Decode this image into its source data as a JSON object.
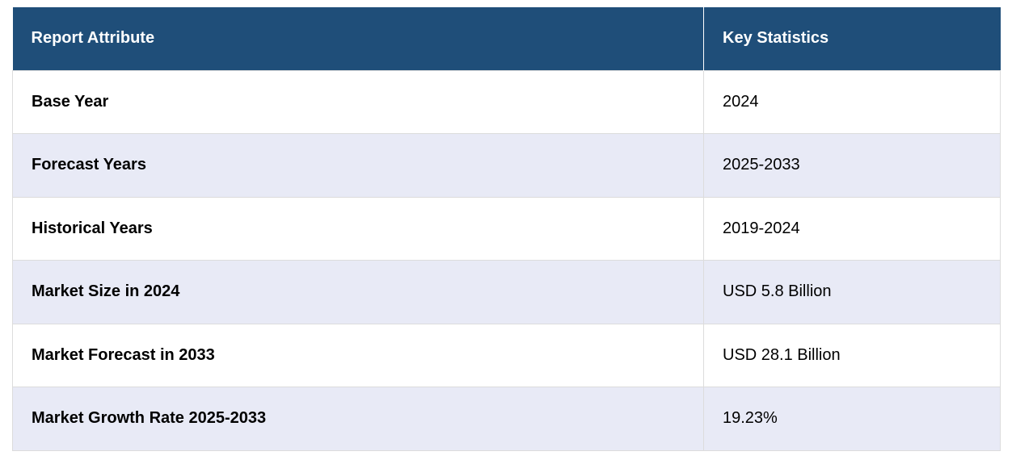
{
  "table": {
    "headers": [
      "Report Attribute",
      "Key Statistics"
    ],
    "rows": [
      {
        "attribute": "Base Year",
        "value": "2024"
      },
      {
        "attribute": "Forecast Years",
        "value": "2025-2033"
      },
      {
        "attribute": "Historical Years",
        "value": "2019-2024"
      },
      {
        "attribute": "Market Size in 2024",
        "value": "USD 5.8 Billion"
      },
      {
        "attribute": "Market Forecast in 2033",
        "value": "USD 28.1 Billion"
      },
      {
        "attribute": "Market Growth Rate 2025-2033",
        "value": "19.23%"
      }
    ]
  },
  "colors": {
    "header_bg": "#1f4e79",
    "header_text": "#ffffff",
    "row_alt_bg": "#e8eaf6",
    "row_bg": "#ffffff"
  }
}
